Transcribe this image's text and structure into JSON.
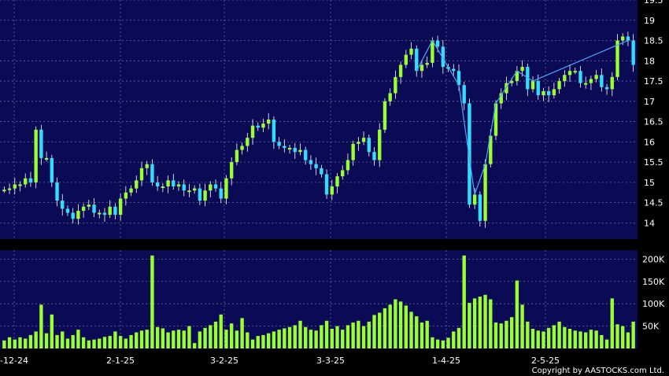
{
  "copyright": "Copyright by AASTOCKS.com Ltd.",
  "colors": {
    "background": "#000000",
    "panel": "#0b0b55",
    "grid": "#6a6a9a",
    "up": "#99ff33",
    "down": "#33ddff",
    "volume": "#99ff33",
    "trendline": "#4da6ff"
  },
  "chart_data": [
    {
      "type": "candlestick",
      "title": "",
      "ylim": [
        13.6,
        19.5
      ],
      "y_ticks": [
        "14",
        "14.5",
        "15",
        "15.5",
        "16",
        "16.5",
        "17",
        "17.5",
        "18",
        "18.5",
        "19",
        "19.5"
      ],
      "grid": true,
      "close": [
        14.82,
        14.85,
        14.95,
        14.95,
        15.1,
        15.0,
        16.3,
        15.6,
        15.6,
        15.0,
        14.55,
        14.35,
        14.25,
        14.1,
        14.3,
        14.4,
        14.45,
        14.25,
        14.25,
        14.2,
        14.4,
        14.2,
        14.6,
        14.75,
        14.85,
        15.05,
        15.35,
        15.45,
        15.0,
        14.9,
        14.9,
        15.05,
        14.9,
        14.95,
        14.8,
        14.8,
        14.85,
        14.55,
        14.8,
        14.95,
        14.85,
        14.6,
        15.1,
        15.5,
        15.8,
        15.9,
        16.1,
        16.4,
        16.35,
        16.45,
        16.55,
        16.0,
        15.9,
        15.85,
        15.85,
        15.75,
        15.8,
        15.55,
        15.45,
        15.35,
        15.2,
        14.7,
        14.9,
        15.15,
        15.3,
        15.55,
        15.95,
        16.0,
        16.1,
        15.75,
        15.55,
        16.3,
        17.0,
        17.2,
        17.6,
        17.9,
        18.15,
        18.3,
        17.75,
        17.9,
        17.95,
        18.5,
        18.35,
        17.85,
        17.8,
        17.75,
        17.4,
        16.95,
        14.45,
        14.7,
        14.05,
        15.45,
        16.15,
        16.95,
        17.2,
        17.45,
        17.5,
        17.75,
        17.85,
        17.3,
        17.5,
        17.15,
        17.25,
        17.15,
        17.3,
        17.5,
        17.65,
        17.75,
        17.75,
        17.45,
        17.45,
        17.55,
        17.65,
        17.35,
        17.3,
        17.6,
        18.5,
        18.6,
        18.5,
        17.9
      ],
      "open_close_offset_note": "",
      "volume": {
        "ylim": [
          0,
          220000
        ],
        "y_ticks": [
          "50K",
          "100K",
          "150K",
          "200K"
        ],
        "values": [
          18000,
          25000,
          20000,
          25000,
          22000,
          30000,
          38000,
          98000,
          34000,
          76000,
          30000,
          38000,
          22000,
          30000,
          42000,
          25000,
          18000,
          20000,
          22000,
          26000,
          28000,
          38000,
          28000,
          22000,
          30000,
          36000,
          40000,
          42000,
          208000,
          48000,
          45000,
          36000,
          40000,
          42000,
          40000,
          50000,
          12000,
          38000,
          46000,
          52000,
          60000,
          76000,
          42000,
          56000,
          40000,
          68000,
          36000,
          20000,
          28000,
          30000,
          34000,
          38000,
          42000,
          45000,
          48000,
          52000,
          62000,
          48000,
          42000,
          40000,
          52000,
          62000,
          44000,
          50000,
          42000,
          52000,
          58000,
          62000,
          50000,
          60000,
          75000,
          80000,
          90000,
          98000,
          110000,
          105000,
          96000,
          82000,
          72000,
          58000,
          62000,
          25000,
          20000,
          18000,
          24000,
          38000,
          46000,
          208000,
          102000,
          112000,
          116000,
          120000,
          110000,
          58000,
          56000,
          62000,
          70000,
          152000,
          98000,
          60000,
          44000,
          40000,
          38000,
          46000,
          52000,
          60000,
          48000,
          44000,
          40000,
          38000,
          36000,
          42000,
          40000,
          30000,
          20000,
          112000,
          54000,
          50000,
          36000,
          60000
        ]
      }
    }
  ],
  "x_axis": {
    "ticks": [
      "-12-24",
      "2-1-25",
      "3-2-25",
      "3-3-25",
      "1-4-25",
      "2-5-25"
    ]
  }
}
